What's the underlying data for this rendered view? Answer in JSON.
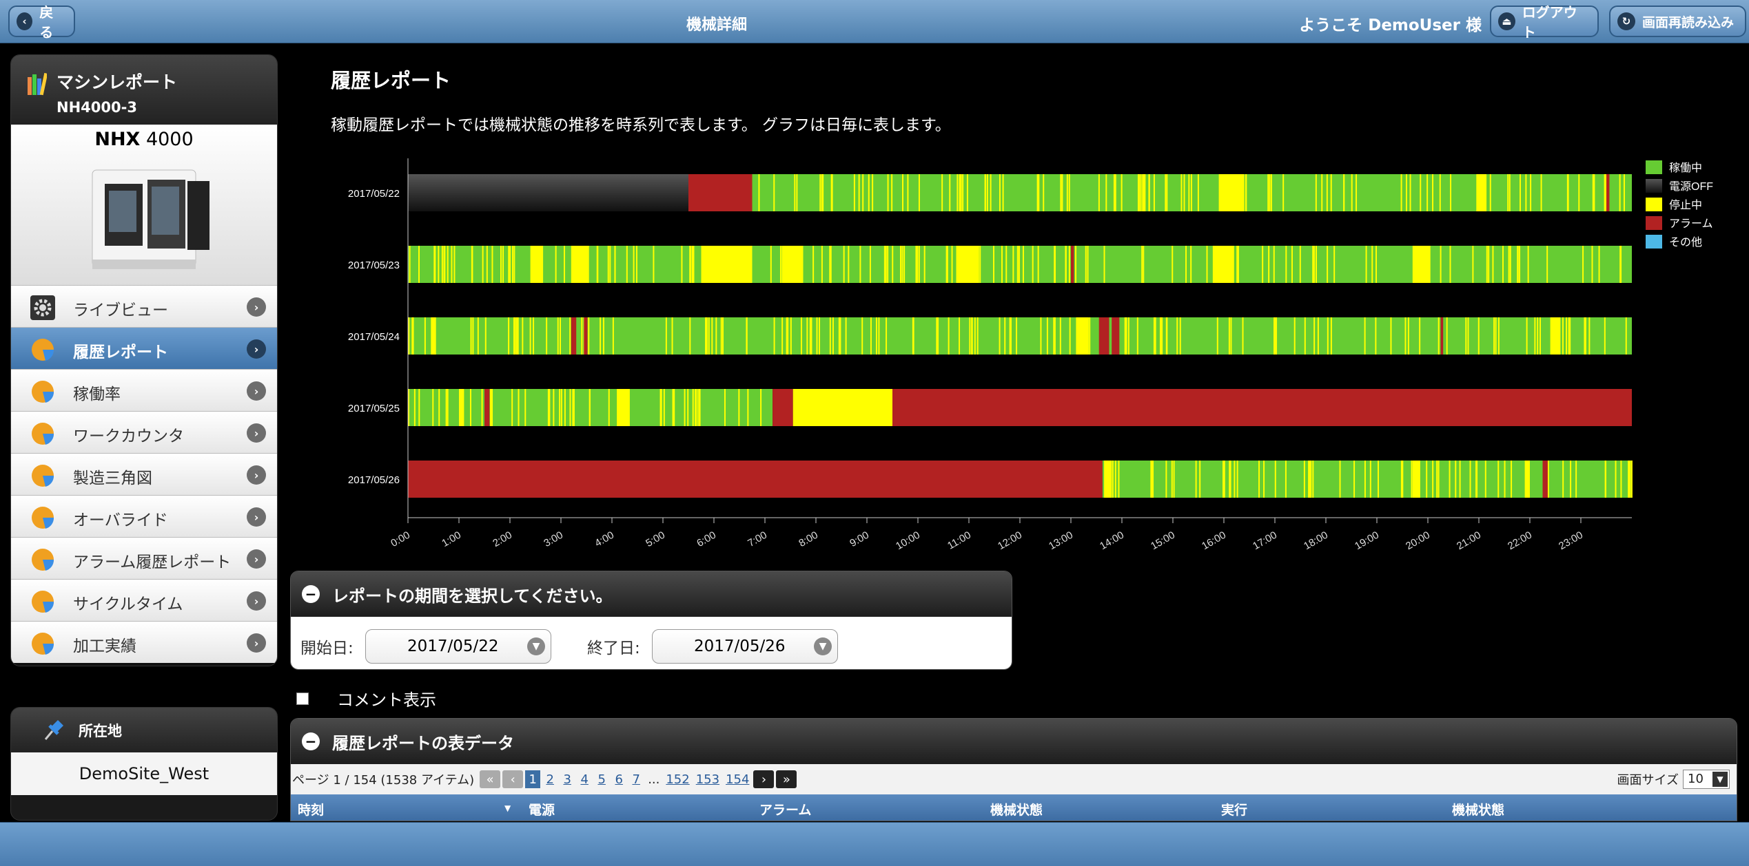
{
  "header": {
    "back_label": "戻る",
    "title": "機械詳細",
    "welcome": "ようこそ DemoUser 様",
    "logout_label": "ログアウト",
    "reload_label": "画面再読み込み"
  },
  "sidebar": {
    "title": "マシンレポート",
    "machine_id": "NH4000-3",
    "model_bold": "NHX",
    "model_num": " 4000",
    "items": [
      {
        "label": "ライブビュー",
        "icon": "gear-icon"
      },
      {
        "label": "履歴レポート",
        "icon": "pie-chart-icon",
        "active": true
      },
      {
        "label": "稼働率",
        "icon": "pie-chart-icon"
      },
      {
        "label": "ワークカウンタ",
        "icon": "pie-chart-icon"
      },
      {
        "label": "製造三角図",
        "icon": "pie-chart-icon"
      },
      {
        "label": "オーバライド",
        "icon": "pie-chart-icon"
      },
      {
        "label": "アラーム履歴レポート",
        "icon": "pie-chart-icon"
      },
      {
        "label": "サイクルタイム",
        "icon": "pie-chart-icon"
      },
      {
        "label": "加工実績",
        "icon": "pie-chart-icon"
      }
    ],
    "location_title": "所在地",
    "location_value": "DemoSite_West"
  },
  "main": {
    "title": "履歴レポート",
    "description": "稼動履歴レポートでは機械状態の推移を時系列で表します。 グラフは日毎に表します。"
  },
  "chart_data": {
    "type": "timeline",
    "title": "",
    "x_unit": "hour",
    "xlim": [
      0,
      24
    ],
    "x_ticks": [
      "0:00",
      "1:00",
      "2:00",
      "3:00",
      "4:00",
      "5:00",
      "6:00",
      "7:00",
      "8:00",
      "9:00",
      "10:00",
      "11:00",
      "12:00",
      "13:00",
      "14:00",
      "15:00",
      "16:00",
      "17:00",
      "18:00",
      "19:00",
      "20:00",
      "21:00",
      "22:00",
      "23:00"
    ],
    "legend_position": "top-right",
    "legend": [
      {
        "key": "run",
        "label": "稼働中",
        "color": "#66cc33"
      },
      {
        "key": "off",
        "label": "電源OFF",
        "color": "#333333"
      },
      {
        "key": "stop",
        "label": "停止中",
        "color": "#ffff00"
      },
      {
        "key": "alarm",
        "label": "アラーム",
        "color": "#b22222"
      },
      {
        "key": "other",
        "label": "その他",
        "color": "#4db8e6"
      }
    ],
    "rows": [
      {
        "date": "2017/05/22",
        "segments": [
          {
            "start": 0,
            "end": 5.5,
            "state": "off"
          },
          {
            "start": 5.5,
            "end": 6.75,
            "state": "alarm"
          },
          {
            "start": 6.75,
            "end": 24,
            "state": "run"
          },
          {
            "start": 15.9,
            "end": 16.4,
            "state": "stop"
          },
          {
            "start": 20.95,
            "end": 21.15,
            "state": "stop"
          },
          {
            "start": 23.5,
            "end": 23.56,
            "state": "alarm"
          }
        ]
      },
      {
        "date": "2017/05/23",
        "segments": [
          {
            "start": 0,
            "end": 24,
            "state": "run"
          },
          {
            "start": 2.4,
            "end": 2.65,
            "state": "stop"
          },
          {
            "start": 3.2,
            "end": 3.55,
            "state": "stop"
          },
          {
            "start": 5.75,
            "end": 6.75,
            "state": "stop"
          },
          {
            "start": 7.35,
            "end": 7.75,
            "state": "stop"
          },
          {
            "start": 10.75,
            "end": 11.2,
            "state": "stop"
          },
          {
            "start": 15.8,
            "end": 16.2,
            "state": "stop"
          },
          {
            "start": 19.7,
            "end": 20.05,
            "state": "stop"
          },
          {
            "start": 13.0,
            "end": 13.06,
            "state": "alarm"
          }
        ]
      },
      {
        "date": "2017/05/24",
        "segments": [
          {
            "start": 0,
            "end": 24,
            "state": "run"
          },
          {
            "start": 0.45,
            "end": 0.55,
            "state": "stop"
          },
          {
            "start": 3.2,
            "end": 3.3,
            "state": "alarm"
          },
          {
            "start": 3.45,
            "end": 3.52,
            "state": "alarm"
          },
          {
            "start": 13.1,
            "end": 13.35,
            "state": "stop"
          },
          {
            "start": 13.55,
            "end": 13.75,
            "state": "alarm"
          },
          {
            "start": 13.8,
            "end": 13.95,
            "state": "alarm"
          },
          {
            "start": 20.25,
            "end": 20.3,
            "state": "alarm"
          },
          {
            "start": 22.4,
            "end": 22.6,
            "state": "stop"
          }
        ]
      },
      {
        "date": "2017/05/25",
        "segments": [
          {
            "start": 0,
            "end": 7.15,
            "state": "run"
          },
          {
            "start": 1.0,
            "end": 1.1,
            "state": "stop"
          },
          {
            "start": 1.5,
            "end": 1.6,
            "state": "alarm"
          },
          {
            "start": 4.1,
            "end": 4.35,
            "state": "stop"
          },
          {
            "start": 7.15,
            "end": 7.55,
            "state": "alarm"
          },
          {
            "start": 7.55,
            "end": 9.5,
            "state": "stop"
          },
          {
            "start": 9.5,
            "end": 24,
            "state": "alarm"
          }
        ]
      },
      {
        "date": "2017/05/26",
        "segments": [
          {
            "start": 0,
            "end": 13.62,
            "state": "alarm"
          },
          {
            "start": 13.62,
            "end": 24,
            "state": "run"
          },
          {
            "start": 13.65,
            "end": 13.8,
            "state": "stop"
          },
          {
            "start": 17.65,
            "end": 17.72,
            "state": "stop"
          },
          {
            "start": 19.7,
            "end": 19.85,
            "state": "stop"
          },
          {
            "start": 21.9,
            "end": 22.0,
            "state": "stop"
          },
          {
            "start": 22.25,
            "end": 22.35,
            "state": "alarm"
          },
          {
            "start": 23.92,
            "end": 23.98,
            "state": "stop"
          }
        ]
      }
    ]
  },
  "period_panel": {
    "title": "レポートの期間を選択してください。",
    "start_label": "開始日:",
    "start_value": "2017/05/22",
    "end_label": "終了日:",
    "end_value": "2017/05/26"
  },
  "comment": {
    "label": "コメント表示",
    "checked": false
  },
  "table_panel": {
    "title": "履歴レポートの表データ",
    "pager_info": "ページ 1 / 154 (1538 アイテム)",
    "pages": [
      "1",
      "2",
      "3",
      "4",
      "5",
      "6",
      "7"
    ],
    "ellipsis": "...",
    "pages_tail": [
      "152",
      "153",
      "154"
    ],
    "page_size_label": "画面サイズ",
    "page_size": "10",
    "columns": [
      "時刻",
      "電源",
      "アラーム",
      "機械状態",
      "実行",
      "機械状態"
    ]
  }
}
